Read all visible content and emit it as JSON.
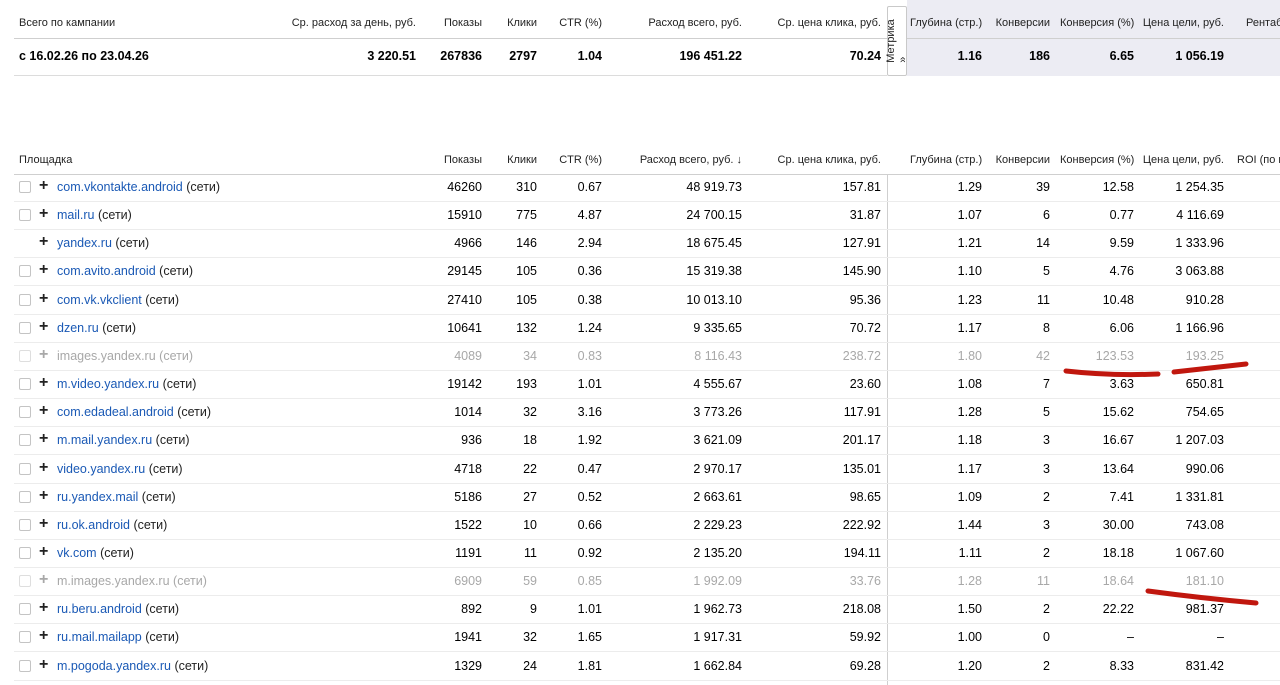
{
  "summary": {
    "label": "Всего по кампании",
    "period": "с 16.02.26 по 23.04.26",
    "headers": {
      "daily_spend": "Ср. расход за день, руб.",
      "impressions": "Показы",
      "clicks": "Клики",
      "ctr": "CTR (%)",
      "total_spend": "Расход всего, руб.",
      "cpc": "Ср. цена клика, руб.",
      "depth": "Глубина (стр.)",
      "conversions": "Конверсии",
      "conv_rate": "Конверсия (%)",
      "goal_price": "Цена цели, руб.",
      "profitability": "Рентаб"
    },
    "values": {
      "daily_spend": "3 220.51",
      "impressions": "267836",
      "clicks": "2797",
      "ctr": "1.04",
      "total_spend": "196 451.22",
      "cpc": "70.24",
      "depth": "1.16",
      "conversions": "186",
      "conv_rate": "6.65",
      "goal_price": "1 056.19"
    },
    "metrika_label": "Метрика »"
  },
  "table": {
    "headers": {
      "site": "Площадка",
      "impressions": "Показы",
      "clicks": "Клики",
      "ctr": "CTR (%)",
      "total_spend": "Расход всего, руб. ↓",
      "cpc": "Ср. цена клика, руб.",
      "depth": "Глубина (стр.)",
      "conversions": "Конверсии",
      "conv_rate": "Конверсия (%)",
      "goal_price": "Цена цели, руб.",
      "roi": "ROI (по ц"
    },
    "suffix": "(сети)",
    "plus_glyph": "+",
    "rows": [
      {
        "site": "com.vkontakte.android",
        "impressions": "46260",
        "clicks": "310",
        "ctr": "0.67",
        "spend": "48 919.73",
        "cpc": "157.81",
        "depth": "1.29",
        "conv": "39",
        "rate": "12.58",
        "goal": "1 254.35",
        "checkbox": true,
        "muted": false
      },
      {
        "site": "mail.ru",
        "impressions": "15910",
        "clicks": "775",
        "ctr": "4.87",
        "spend": "24 700.15",
        "cpc": "31.87",
        "depth": "1.07",
        "conv": "6",
        "rate": "0.77",
        "goal": "4 116.69",
        "checkbox": true,
        "muted": false
      },
      {
        "site": "yandex.ru",
        "impressions": "4966",
        "clicks": "146",
        "ctr": "2.94",
        "spend": "18 675.45",
        "cpc": "127.91",
        "depth": "1.21",
        "conv": "14",
        "rate": "9.59",
        "goal": "1 333.96",
        "checkbox": false,
        "muted": false
      },
      {
        "site": "com.avito.android",
        "impressions": "29145",
        "clicks": "105",
        "ctr": "0.36",
        "spend": "15 319.38",
        "cpc": "145.90",
        "depth": "1.10",
        "conv": "5",
        "rate": "4.76",
        "goal": "3 063.88",
        "checkbox": true,
        "muted": false
      },
      {
        "site": "com.vk.vkclient",
        "impressions": "27410",
        "clicks": "105",
        "ctr": "0.38",
        "spend": "10 013.10",
        "cpc": "95.36",
        "depth": "1.23",
        "conv": "11",
        "rate": "10.48",
        "goal": "910.28",
        "checkbox": true,
        "muted": false
      },
      {
        "site": "dzen.ru",
        "impressions": "10641",
        "clicks": "132",
        "ctr": "1.24",
        "spend": "9 335.65",
        "cpc": "70.72",
        "depth": "1.17",
        "conv": "8",
        "rate": "6.06",
        "goal": "1 166.96",
        "checkbox": true,
        "muted": false
      },
      {
        "site": "images.yandex.ru",
        "impressions": "4089",
        "clicks": "34",
        "ctr": "0.83",
        "spend": "8 116.43",
        "cpc": "238.72",
        "depth": "1.80",
        "conv": "42",
        "rate": "123.53",
        "goal": "193.25",
        "checkbox": true,
        "muted": true
      },
      {
        "site": "m.video.yandex.ru",
        "impressions": "19142",
        "clicks": "193",
        "ctr": "1.01",
        "spend": "4 555.67",
        "cpc": "23.60",
        "depth": "1.08",
        "conv": "7",
        "rate": "3.63",
        "goal": "650.81",
        "checkbox": true,
        "muted": false
      },
      {
        "site": "com.edadeal.android",
        "impressions": "1014",
        "clicks": "32",
        "ctr": "3.16",
        "spend": "3 773.26",
        "cpc": "117.91",
        "depth": "1.28",
        "conv": "5",
        "rate": "15.62",
        "goal": "754.65",
        "checkbox": true,
        "muted": false
      },
      {
        "site": "m.mail.yandex.ru",
        "impressions": "936",
        "clicks": "18",
        "ctr": "1.92",
        "spend": "3 621.09",
        "cpc": "201.17",
        "depth": "1.18",
        "conv": "3",
        "rate": "16.67",
        "goal": "1 207.03",
        "checkbox": true,
        "muted": false
      },
      {
        "site": "video.yandex.ru",
        "impressions": "4718",
        "clicks": "22",
        "ctr": "0.47",
        "spend": "2 970.17",
        "cpc": "135.01",
        "depth": "1.17",
        "conv": "3",
        "rate": "13.64",
        "goal": "990.06",
        "checkbox": true,
        "muted": false
      },
      {
        "site": "ru.yandex.mail",
        "impressions": "5186",
        "clicks": "27",
        "ctr": "0.52",
        "spend": "2 663.61",
        "cpc": "98.65",
        "depth": "1.09",
        "conv": "2",
        "rate": "7.41",
        "goal": "1 331.81",
        "checkbox": true,
        "muted": false
      },
      {
        "site": "ru.ok.android",
        "impressions": "1522",
        "clicks": "10",
        "ctr": "0.66",
        "spend": "2 229.23",
        "cpc": "222.92",
        "depth": "1.44",
        "conv": "3",
        "rate": "30.00",
        "goal": "743.08",
        "checkbox": true,
        "muted": false
      },
      {
        "site": "vk.com",
        "impressions": "1191",
        "clicks": "11",
        "ctr": "0.92",
        "spend": "2 135.20",
        "cpc": "194.11",
        "depth": "1.11",
        "conv": "2",
        "rate": "18.18",
        "goal": "1 067.60",
        "checkbox": true,
        "muted": false
      },
      {
        "site": "m.images.yandex.ru",
        "impressions": "6909",
        "clicks": "59",
        "ctr": "0.85",
        "spend": "1 992.09",
        "cpc": "33.76",
        "depth": "1.28",
        "conv": "11",
        "rate": "18.64",
        "goal": "181.10",
        "checkbox": true,
        "muted": true
      },
      {
        "site": "ru.beru.android",
        "impressions": "892",
        "clicks": "9",
        "ctr": "1.01",
        "spend": "1 962.73",
        "cpc": "218.08",
        "depth": "1.50",
        "conv": "2",
        "rate": "22.22",
        "goal": "981.37",
        "checkbox": true,
        "muted": false
      },
      {
        "site": "ru.mail.mailapp",
        "impressions": "1941",
        "clicks": "32",
        "ctr": "1.65",
        "spend": "1 917.31",
        "cpc": "59.92",
        "depth": "1.00",
        "conv": "0",
        "rate": "–",
        "goal": "–",
        "checkbox": true,
        "muted": false
      },
      {
        "site": "m.pogoda.yandex.ru",
        "impressions": "1329",
        "clicks": "24",
        "ctr": "1.81",
        "spend": "1 662.84",
        "cpc": "69.28",
        "depth": "1.20",
        "conv": "2",
        "rate": "8.33",
        "goal": "831.42",
        "checkbox": true,
        "muted": false
      }
    ]
  },
  "colors": {
    "link": "#1a59b5",
    "muted": "#a8a8a8",
    "metrika_bg": "#ececf3",
    "annotation": "#c0170e"
  }
}
